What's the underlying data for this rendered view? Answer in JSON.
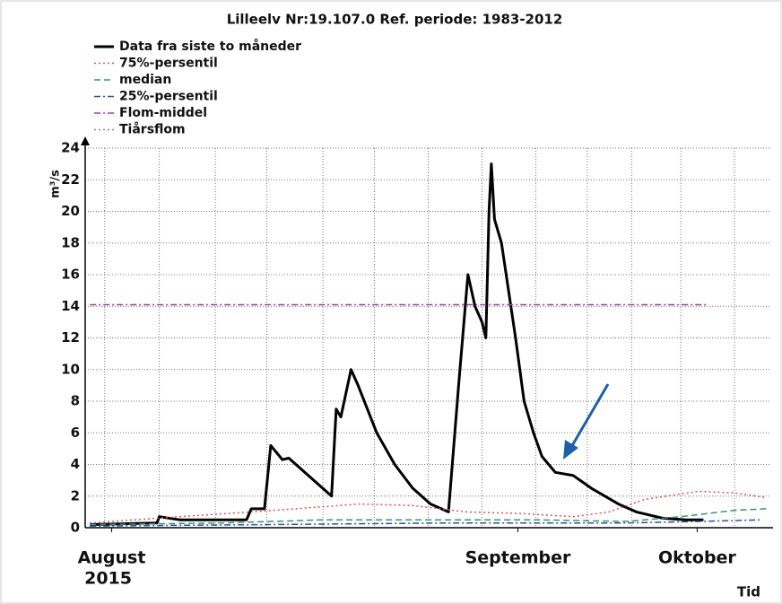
{
  "chart_data": {
    "type": "line",
    "title": "Lilleelv Nr:19.107.0 Ref. periode: 1983-2012",
    "y_label": "m³/s",
    "x_label": "Tid",
    "year": "2015",
    "xlim": [
      0,
      88
    ],
    "xticks": [
      {
        "value": 3.4,
        "label": "August"
      },
      {
        "value": 55.5,
        "label": "September"
      },
      {
        "value": 78.5,
        "label": "Oktober"
      }
    ],
    "xgrid": [
      2.5,
      9.5,
      16.7,
      23.3,
      30.5,
      37.1,
      44,
      50.9,
      57.8,
      64.4,
      70.1,
      76.4,
      83.3
    ],
    "ylim": [
      0,
      24
    ],
    "yticks": [
      0,
      2,
      4,
      6,
      8,
      10,
      12,
      14,
      16,
      18,
      20,
      22,
      24
    ],
    "grid": true,
    "legend": "top-left",
    "series": [
      {
        "name": "Data fra siste to måneder",
        "color": "#000000",
        "dash": "solid",
        "width": 3,
        "x": [
          0.6,
          9.2,
          9.5,
          12.1,
          20.7,
          21.3,
          23,
          23.8,
          25.3,
          26.1,
          31.6,
          32.2,
          32.8,
          34.1,
          35,
          37.4,
          39.7,
          42,
          44.3,
          46.6,
          47.9,
          49.1,
          50,
          50.9,
          51.4,
          51.8,
          52.1,
          52.5,
          53.4,
          55.2,
          56.3,
          57.5,
          58.6,
          60.3,
          62.6,
          64.9,
          68.4,
          70.7,
          74.1,
          77,
          79.3
        ],
        "values": [
          0.2,
          0.3,
          0.7,
          0.5,
          0.5,
          1.2,
          1.2,
          5.2,
          4.3,
          4.4,
          2,
          7.5,
          7,
          10,
          9,
          6,
          4,
          2.5,
          1.5,
          1,
          9,
          16,
          14,
          13,
          12,
          20,
          23,
          19.5,
          18,
          12,
          8,
          6,
          4.5,
          3.5,
          3.3,
          2.5,
          1.5,
          1,
          0.6,
          0.5,
          0.5
        ]
      },
      {
        "name": "75%-persentil",
        "color": "#d9534f",
        "dash": "dotted",
        "width": 1.5,
        "x": [
          0.6,
          12.1,
          21.3,
          27,
          35,
          42,
          48.9,
          55.7,
          62.6,
          67.2,
          71.8,
          78.7,
          83.3,
          87.4
        ],
        "values": [
          0.3,
          0.7,
          1,
          1.2,
          1.5,
          1.4,
          1,
          0.9,
          0.7,
          1,
          1.8,
          2.3,
          2.2,
          1.9
        ]
      },
      {
        "name": "median",
        "color": "#2e9a6e",
        "dash": "dashed",
        "width": 1.5,
        "x": [
          0.6,
          17.8,
          30.5,
          58,
          69.5,
          76.4,
          83.3,
          87.4
        ],
        "values": [
          0.2,
          0.3,
          0.5,
          0.5,
          0.4,
          0.7,
          1.1,
          1.2
        ]
      },
      {
        "name": "25%-persentil",
        "color": "#2a4fb0",
        "dash": "dashdot",
        "width": 1.5,
        "x": [
          0.6,
          23.6,
          46.6,
          69.5,
          78.7,
          86.8
        ],
        "values": [
          0.1,
          0.2,
          0.3,
          0.3,
          0.4,
          0.5
        ]
      },
      {
        "name": "Flom-middel",
        "color": "#b03aa8",
        "dash": "dashdot",
        "width": 1.5,
        "x": [
          0.6,
          79.9
        ],
        "values": [
          14.1,
          14.1
        ]
      },
      {
        "name": "Tiårsflom",
        "color": "#888888",
        "dash": "dotted",
        "width": 1.5,
        "x": [],
        "values": []
      }
    ]
  }
}
